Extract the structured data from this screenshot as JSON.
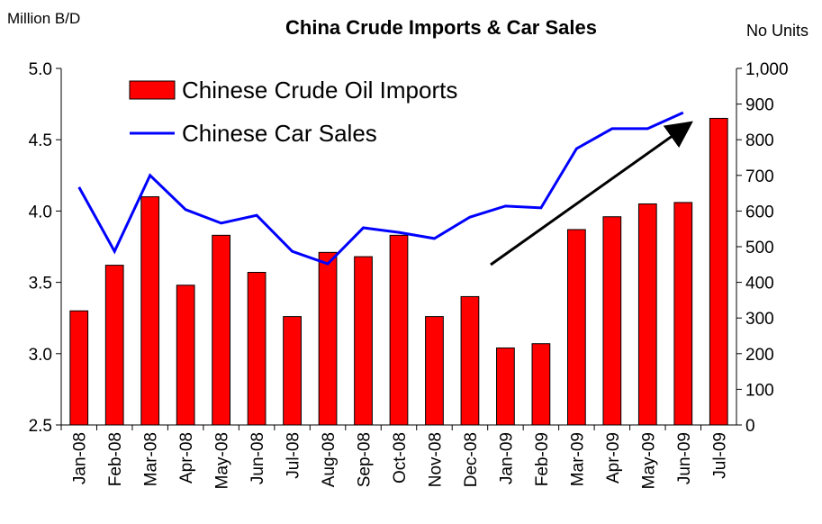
{
  "chart_data": {
    "type": "bar_line",
    "title": "China Crude Imports & Car Sales",
    "y_label": "Million B/D",
    "y2_label": "No Units",
    "categories": [
      "Jan-08",
      "Feb-08",
      "Mar-08",
      "Apr-08",
      "May-08",
      "Jun-08",
      "Jul-08",
      "Aug-08",
      "Sep-08",
      "Oct-08",
      "Nov-08",
      "Dec-08",
      "Jan-09",
      "Feb-09",
      "Mar-09",
      "Apr-09",
      "May-09",
      "Jun-09",
      "Jul-09"
    ],
    "series": [
      {
        "name": "Chinese Crude Oil Imports",
        "type": "bar",
        "color": "#ff0000",
        "values": [
          3.3,
          3.62,
          4.1,
          3.48,
          3.83,
          3.57,
          3.26,
          3.71,
          3.68,
          3.83,
          3.26,
          3.4,
          3.04,
          3.07,
          3.87,
          3.96,
          4.05,
          4.06,
          4.65
        ]
      },
      {
        "name": "Chinese Car Sales",
        "type": "line",
        "axis": "y2",
        "color": "#0000ff",
        "values": [
          667,
          487,
          700,
          604,
          566,
          588,
          487,
          452,
          553,
          540,
          523,
          583,
          614,
          609,
          775,
          831,
          831,
          876,
          null
        ]
      }
    ],
    "ylim": [
      2.5,
      5.0
    ],
    "yticks": [
      {
        "value": 2.5,
        "label": "2.5"
      },
      {
        "value": 3.0,
        "label": "3.0"
      },
      {
        "value": 3.5,
        "label": "3.5"
      },
      {
        "value": 4.0,
        "label": "4.0"
      },
      {
        "value": 4.5,
        "label": "4.5"
      },
      {
        "value": 5.0,
        "label": "5.0"
      }
    ],
    "y2lim": [
      0,
      1000
    ],
    "y2ticks": [
      0,
      100,
      200,
      300,
      400,
      500,
      600,
      700,
      800,
      900,
      {
        "value": 1000,
        "label": "1,000"
      }
    ],
    "legend": "upper left"
  }
}
